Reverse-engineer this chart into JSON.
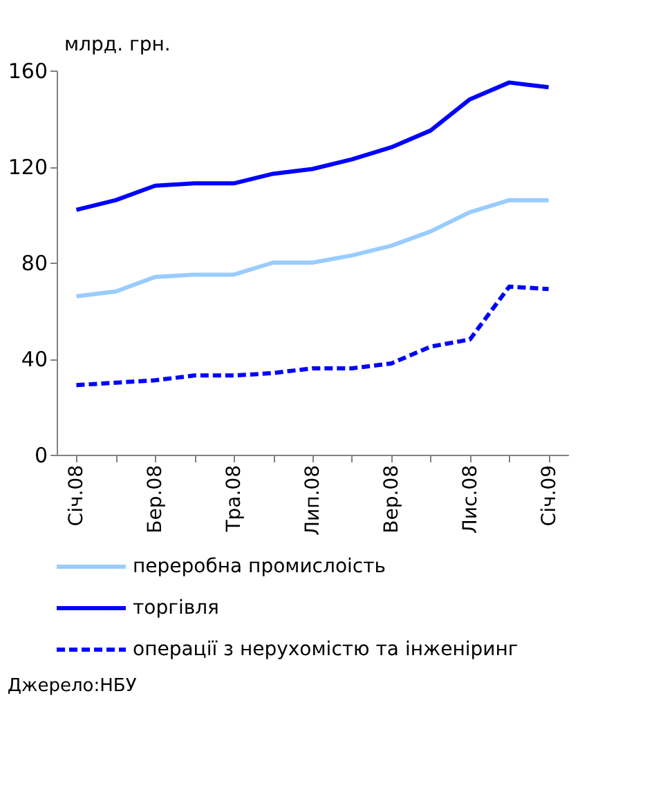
{
  "chart_data": {
    "type": "line",
    "ylabel": "млрд. грн.",
    "categories": [
      "Січ.08",
      null,
      "Бер.08",
      null,
      "Тра.08",
      null,
      "Лип.08",
      null,
      "Вер.08",
      null,
      "Лис.08",
      null,
      "Січ.09"
    ],
    "series": [
      {
        "name": "переробна промислоість",
        "color": "#99ccff",
        "line_style": "solid",
        "values": [
          66,
          68,
          74,
          75,
          75,
          80,
          80,
          83,
          87,
          93,
          101,
          106,
          106
        ]
      },
      {
        "name": "торгівля",
        "color": "#0000ff",
        "line_style": "solid",
        "values": [
          102,
          106,
          112,
          113,
          113,
          117,
          119,
          123,
          128,
          135,
          148,
          155,
          153
        ]
      },
      {
        "name": "операції з нерухомістю та інженіринг",
        "color": "#0000ff",
        "line_style": "dashed",
        "values": [
          29,
          30,
          31,
          33,
          33,
          34,
          36,
          36,
          38,
          45,
          48,
          70,
          69
        ]
      }
    ],
    "ylim": [
      0,
      160
    ],
    "yticks": [
      0,
      40,
      80,
      120,
      160
    ],
    "grid": false,
    "legend": "bottom",
    "annotations": [
      "Джерело:НБУ"
    ]
  }
}
